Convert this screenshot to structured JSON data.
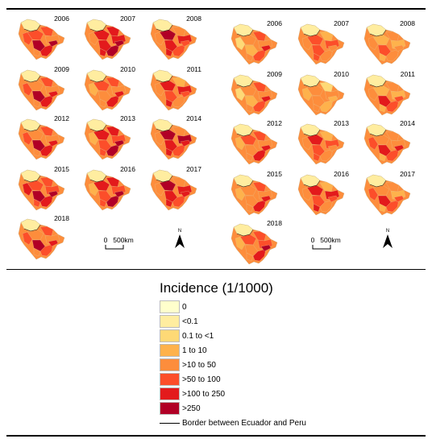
{
  "panels": [
    {
      "maps": [
        {
          "year": "2006",
          "intensity": 0.78
        },
        {
          "year": "2007",
          "intensity": 0.85
        },
        {
          "year": "2008",
          "intensity": 0.72
        },
        {
          "year": "2009",
          "intensity": 0.7
        },
        {
          "year": "2010",
          "intensity": 0.55
        },
        {
          "year": "2011",
          "intensity": 0.62
        },
        {
          "year": "2012",
          "intensity": 0.68
        },
        {
          "year": "2013",
          "intensity": 0.75
        },
        {
          "year": "2014",
          "intensity": 0.8
        },
        {
          "year": "2015",
          "intensity": 0.85
        },
        {
          "year": "2016",
          "intensity": 0.72
        },
        {
          "year": "2017",
          "intensity": 0.78
        },
        {
          "year": "2018",
          "intensity": 0.65
        }
      ],
      "scale": {
        "zero": "0",
        "end": "500km"
      },
      "north": "N"
    },
    {
      "maps": [
        {
          "year": "2006",
          "intensity": 0.45
        },
        {
          "year": "2007",
          "intensity": 0.5
        },
        {
          "year": "2008",
          "intensity": 0.4
        },
        {
          "year": "2009",
          "intensity": 0.42
        },
        {
          "year": "2010",
          "intensity": 0.3
        },
        {
          "year": "2011",
          "intensity": 0.48
        },
        {
          "year": "2012",
          "intensity": 0.52
        },
        {
          "year": "2013",
          "intensity": 0.55
        },
        {
          "year": "2014",
          "intensity": 0.6
        },
        {
          "year": "2015",
          "intensity": 0.5
        },
        {
          "year": "2016",
          "intensity": 0.62
        },
        {
          "year": "2017",
          "intensity": 0.55
        },
        {
          "year": "2018",
          "intensity": 0.58
        }
      ],
      "scale": {
        "zero": "0",
        "end": "500km"
      },
      "north": "N"
    }
  ],
  "legend": {
    "title": "Incidence (1/1000)",
    "classes": [
      {
        "label": "0",
        "color": "#ffffcc"
      },
      {
        "label": "<0.1",
        "color": "#ffeda0"
      },
      {
        "label": "0.1 to <1",
        "color": "#fed976"
      },
      {
        "label": "1 to 10",
        "color": "#feb24c"
      },
      {
        "label": ">10 to 50",
        "color": "#fd8d3c"
      },
      {
        "label": ">50 to 100",
        "color": "#fc4e2a"
      },
      {
        "label": ">100 to 250",
        "color": "#e31a1c"
      },
      {
        "label": ">250",
        "color": "#b10026"
      }
    ],
    "border_label": "Border between Ecuador and Peru"
  }
}
